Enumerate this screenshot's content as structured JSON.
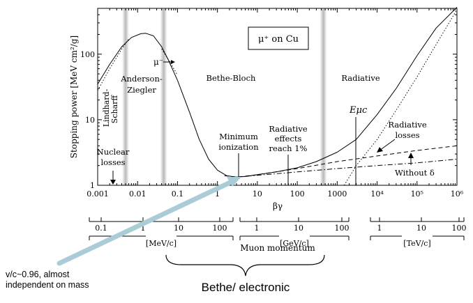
{
  "chart_data": {
    "type": "line",
    "title": "μ⁺ on Cu",
    "xlabel": "βγ",
    "ylabel": "Stopping power [MeV cm²/g]",
    "xscale": "log",
    "yscale": "log",
    "xlim": [
      0.001,
      1000000
    ],
    "ylim": [
      1,
      500
    ],
    "x_ticks": [
      {
        "v": 0.001,
        "label": "0.001"
      },
      {
        "v": 0.01,
        "label": "0.01"
      },
      {
        "v": 0.1,
        "label": "0.1"
      },
      {
        "v": 1,
        "label": "1"
      },
      {
        "v": 10,
        "label": "10"
      },
      {
        "v": 100,
        "label": "100"
      },
      {
        "v": 1000,
        "label": "1000"
      },
      {
        "v": 10000,
        "label": "10⁴"
      },
      {
        "v": 100000,
        "label": "10⁵"
      },
      {
        "v": 1000000,
        "label": "10⁶"
      }
    ],
    "y_ticks": [
      {
        "v": 1,
        "label": "1"
      },
      {
        "v": 10,
        "label": "10"
      },
      {
        "v": 100,
        "label": "100"
      }
    ],
    "bands_betagamma": [
      0.005,
      0.045,
      450
    ],
    "series": [
      {
        "style": "solid",
        "points": [
          [
            0.001,
            35
          ],
          [
            0.002,
            70
          ],
          [
            0.004,
            130
          ],
          [
            0.007,
            180
          ],
          [
            0.012,
            205
          ],
          [
            0.016,
            208
          ],
          [
            0.025,
            190
          ],
          [
            0.04,
            130
          ],
          [
            0.06,
            80
          ],
          [
            0.1,
            40
          ],
          [
            0.2,
            13
          ],
          [
            0.35,
            5
          ],
          [
            0.6,
            2.5
          ],
          [
            1,
            1.7
          ],
          [
            1.7,
            1.4
          ],
          [
            3,
            1.33
          ],
          [
            5,
            1.36
          ],
          [
            10,
            1.45
          ],
          [
            30,
            1.6
          ],
          [
            100,
            1.85
          ],
          [
            300,
            2.3
          ],
          [
            1000,
            3.2
          ],
          [
            3000,
            5
          ],
          [
            10000,
            12
          ],
          [
            30000,
            30
          ],
          [
            100000,
            95
          ],
          [
            300000,
            250
          ],
          [
            1000000,
            520
          ]
        ]
      },
      {
        "style": "dashed",
        "points": [
          [
            1.5,
            1.4
          ],
          [
            3,
            1.33
          ],
          [
            10,
            1.45
          ],
          [
            100,
            1.8
          ],
          [
            1000,
            2.3
          ],
          [
            10000,
            2.8
          ],
          [
            100000,
            3.4
          ],
          [
            1000000,
            4
          ]
        ]
      },
      {
        "style": "dashdot",
        "points": [
          [
            3,
            1.33
          ],
          [
            10,
            1.42
          ],
          [
            100,
            1.6
          ],
          [
            1000,
            1.8
          ],
          [
            10000,
            2.0
          ],
          [
            100000,
            2.2
          ],
          [
            1000000,
            2.5
          ]
        ]
      },
      {
        "style": "dotted",
        "points": [
          [
            1500,
            1
          ],
          [
            3000,
            2
          ],
          [
            10000,
            5
          ],
          [
            30000,
            14
          ],
          [
            100000,
            45
          ],
          [
            300000,
            140
          ],
          [
            1000000,
            480
          ]
        ]
      },
      {
        "style": "dotted",
        "points": [
          [
            0.001,
            28
          ],
          [
            0.002,
            60
          ],
          [
            0.004,
            120
          ],
          [
            0.006,
            170
          ]
        ]
      },
      {
        "style": "dotted",
        "points": [
          [
            0.04,
            120
          ],
          [
            0.07,
            70
          ],
          [
            0.1,
            48
          ]
        ]
      }
    ],
    "annotations": {
      "nuclear_losses": [
        "Nuclear",
        "losses"
      ],
      "lindhard": "Lindhard-",
      "scharff": "Scharff",
      "anderson": [
        "Anderson-",
        "Ziegler"
      ],
      "mu_minus": "μ⁻",
      "bethe_bloch": "Bethe-Bloch",
      "radiative": "Radiative",
      "minimum": [
        "Minimum",
        "ionization"
      ],
      "rad_effects": [
        "Radiative",
        "effects",
        "reach 1%"
      ],
      "e_muc": "Eμc",
      "rad_losses": [
        "Radiative",
        "losses"
      ],
      "without_delta": "Without δ"
    },
    "momentum_scales": [
      {
        "unit": "[MeV/c]",
        "ticks": [
          "0.1",
          "1",
          "10",
          "100"
        ]
      },
      {
        "unit": "[GeV/c]",
        "ticks": [
          "1",
          "10",
          "100"
        ]
      },
      {
        "unit": "[TeV/c]",
        "ticks": [
          "1",
          "10",
          "100"
        ]
      }
    ],
    "momentum_label": "Muon momentum"
  },
  "callouts": {
    "velocity_note": [
      "v/c~0.96, almost",
      "independent on mass"
    ],
    "bethe_electronic": "Bethe/ electronic"
  },
  "colors": {
    "arrow": "#a9ccd6",
    "band": "#b5b5b5"
  }
}
